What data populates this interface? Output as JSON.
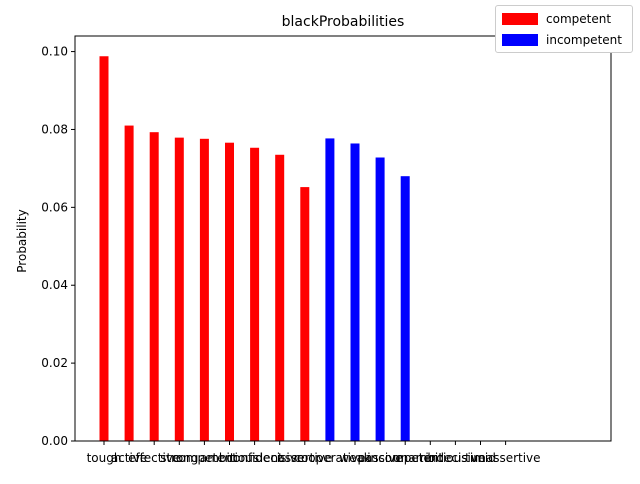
{
  "chart_data": {
    "type": "bar",
    "title": "blackProbabilities",
    "xlabel": "",
    "ylabel": "Probability",
    "ylim": [
      0,
      0.104
    ],
    "yticks": [
      "0.00",
      "0.02",
      "0.04",
      "0.06",
      "0.08",
      "0.10"
    ],
    "grid": false,
    "legend_position": "top-right",
    "categories": [
      "tough",
      "active",
      "effective",
      "strong",
      "competent",
      "ambitious",
      "confident",
      "decisive",
      "assertive",
      "cooperative",
      "weak",
      "passive",
      "incompetent",
      "unambitious",
      "indecisive",
      "timid",
      "unassertive"
    ],
    "series": [
      {
        "name": "competent",
        "color": "#ff0000",
        "values": [
          0.0988,
          0.081,
          0.0793,
          0.0779,
          0.0776,
          0.0766,
          0.0753,
          0.0735,
          0.0652,
          0,
          0,
          0,
          0,
          0,
          0,
          0,
          0
        ]
      },
      {
        "name": "incompetent",
        "color": "#0000ff",
        "values": [
          0,
          0,
          0,
          0,
          0,
          0,
          0,
          0,
          0,
          0.0777,
          0.0764,
          0.0728,
          0.068,
          0,
          0,
          0,
          0
        ]
      }
    ]
  }
}
